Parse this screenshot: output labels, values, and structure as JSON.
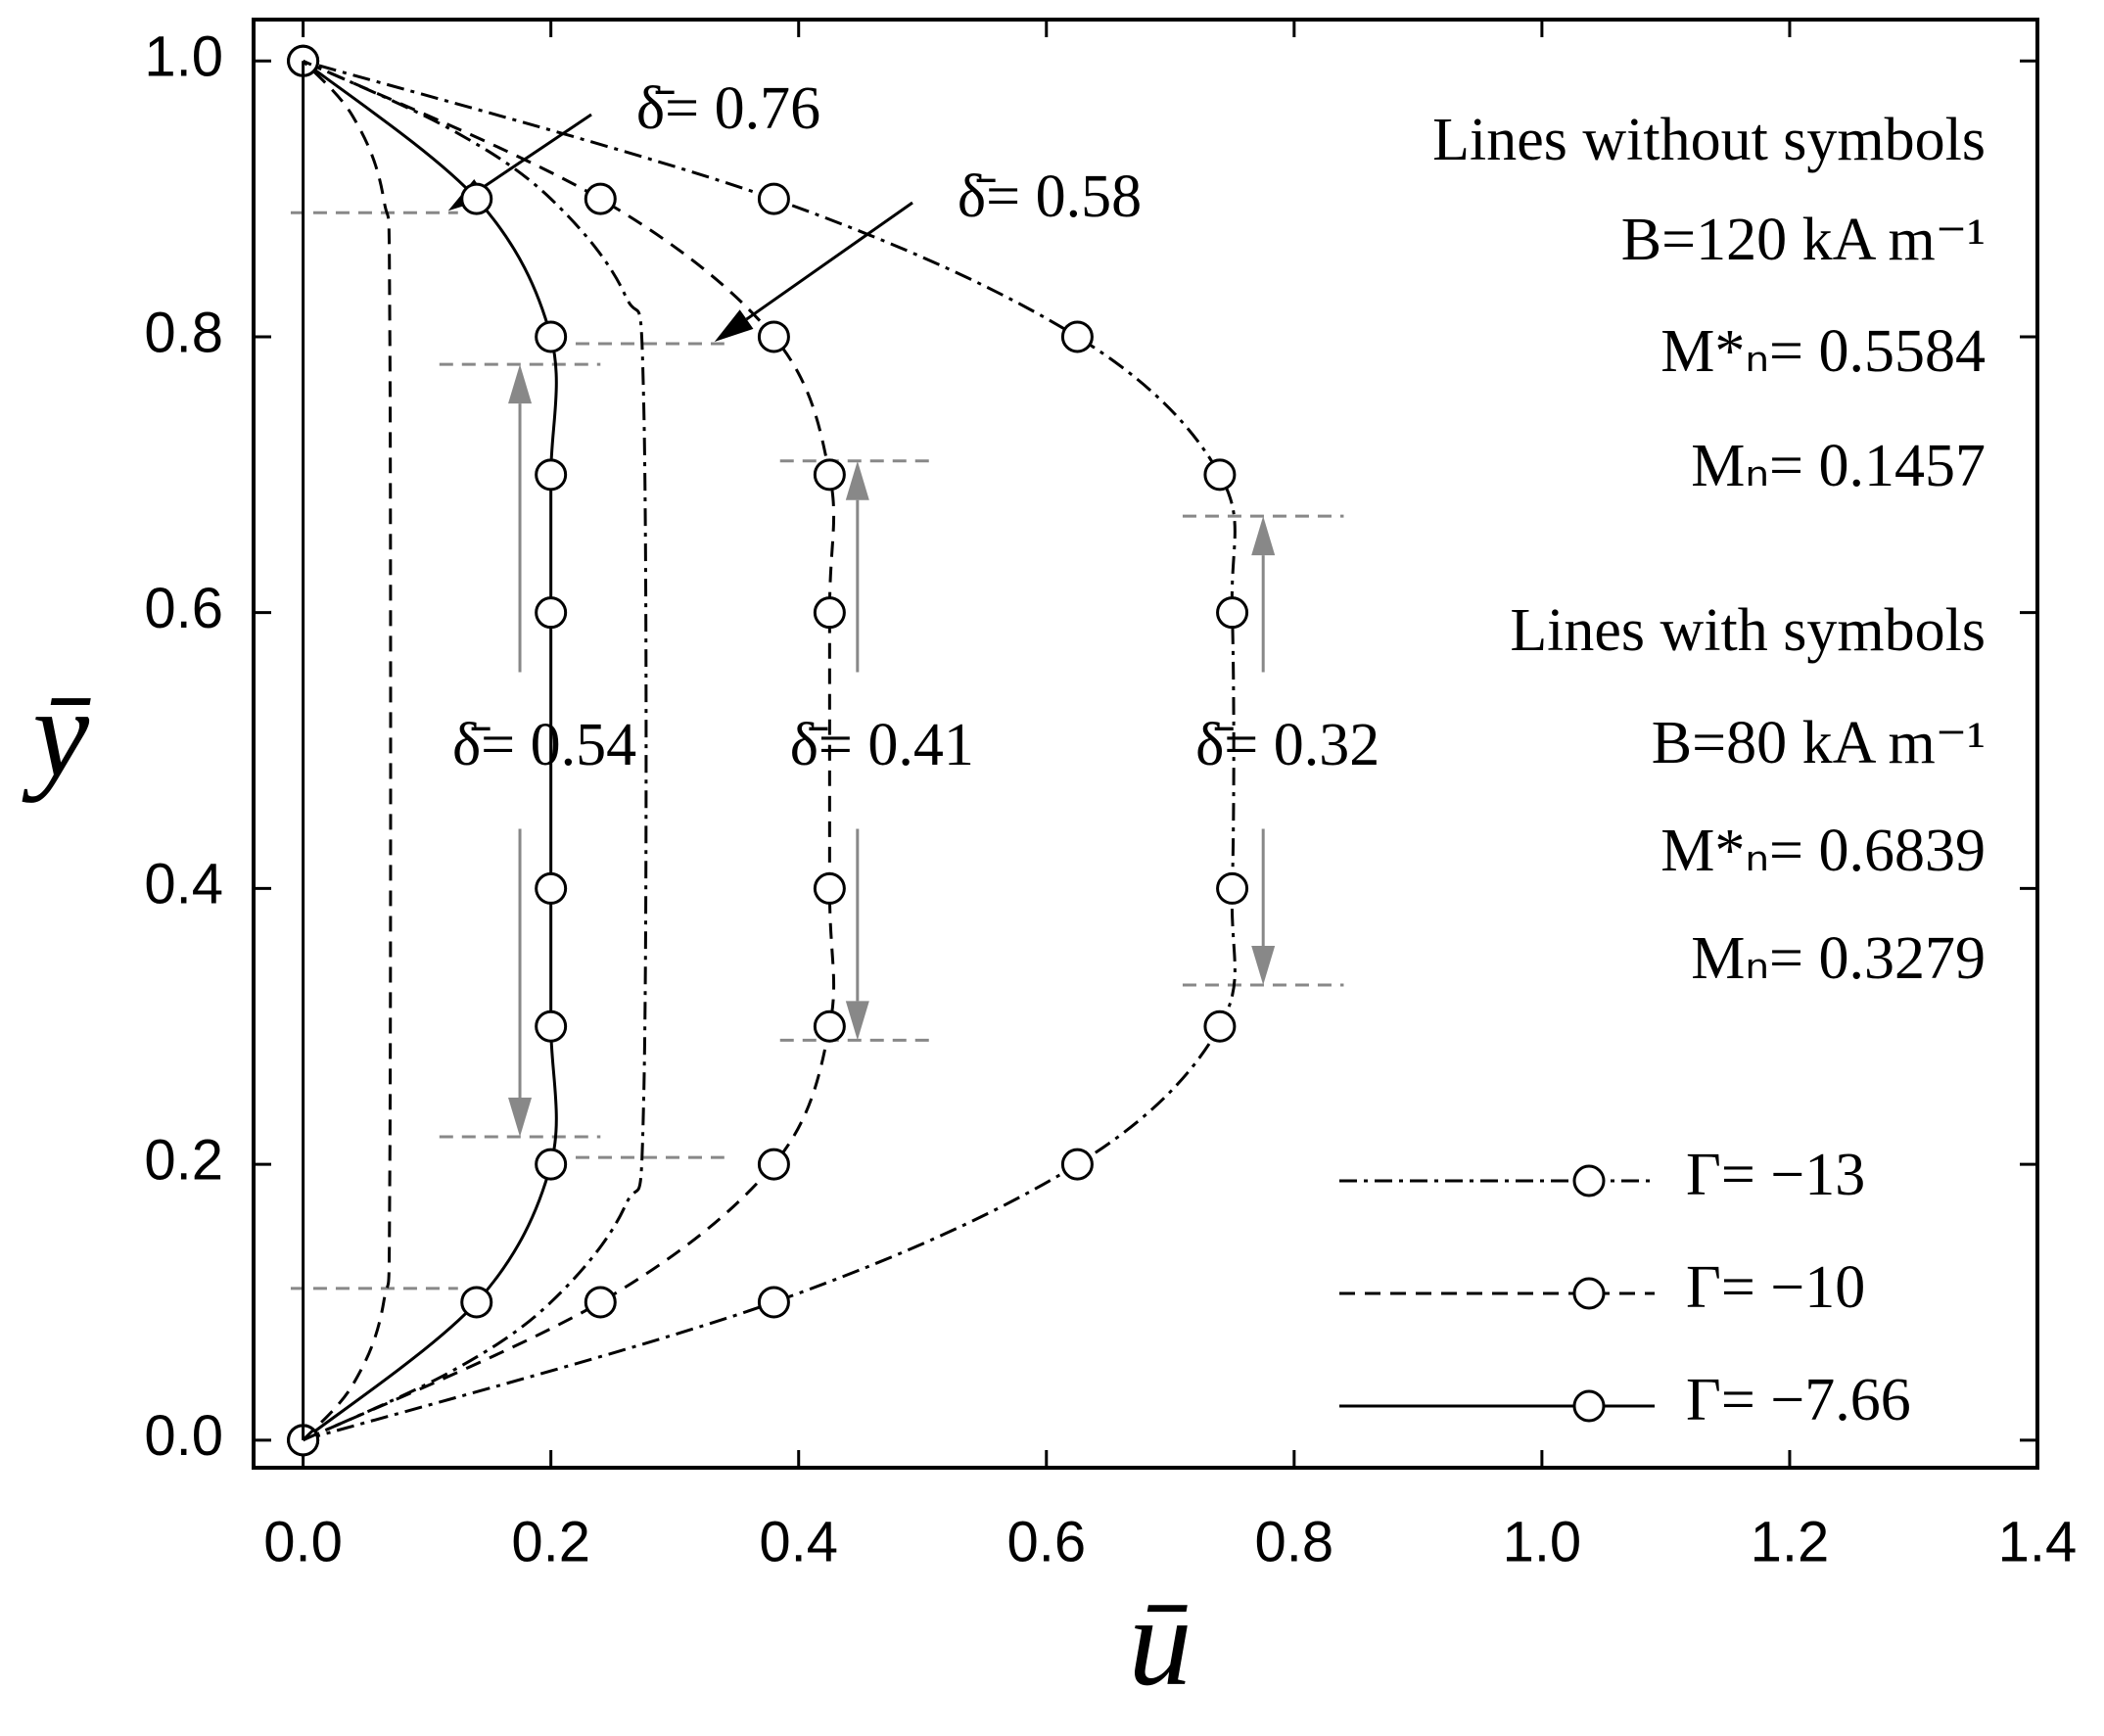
{
  "chart_data": {
    "type": "line",
    "x_label": "ū",
    "y_label": "ȳ",
    "xlim": [
      -0.04,
      1.4
    ],
    "xticks": [
      {
        "value": 0,
        "label": "0.0"
      },
      0.2,
      0.4,
      0.6,
      0.8,
      {
        "value": 1,
        "label": "1.0"
      },
      1.2,
      1.4
    ],
    "ylim": [
      -0.02,
      1.03
    ],
    "yticks": [
      {
        "value": 0,
        "label": "0.0"
      },
      0.2,
      0.4,
      0.6,
      0.8,
      {
        "value": 1,
        "label": "1.0"
      }
    ],
    "series": [
      {
        "name": "Γ= −13",
        "color": "#000000",
        "dash": "dash-dot",
        "markers": true,
        "x": [
          0,
          0.38,
          0.625,
          0.74,
          0.75,
          0.75,
          0.74,
          0.625,
          0.38,
          0
        ],
        "y": [
          0,
          0.1,
          0.2,
          0.3,
          0.4,
          0.6,
          0.7,
          0.8,
          0.9,
          1.0
        ]
      },
      {
        "name": "Γ= −10",
        "color": "#000000",
        "dash": "dashed",
        "markers": true,
        "x": [
          0,
          0.24,
          0.38,
          0.425,
          0.425,
          0.425,
          0.425,
          0.38,
          0.24,
          0
        ],
        "y": [
          0,
          0.1,
          0.2,
          0.3,
          0.4,
          0.6,
          0.7,
          0.8,
          0.9,
          1.0
        ]
      },
      {
        "name": "Γ= −7.66",
        "color": "#000000",
        "dash": "solid",
        "markers": true,
        "x": [
          0,
          0.14,
          0.2,
          0.2,
          0.2,
          0.2,
          0.2,
          0.2,
          0.14,
          0
        ],
        "y": [
          0,
          0.1,
          0.2,
          0.3,
          0.4,
          0.6,
          0.7,
          0.8,
          0.9,
          1.0
        ]
      },
      {
        "color": "#000000",
        "dash": "dash-dot",
        "markers": false,
        "x": [
          0,
          0.12,
          0.2,
          0.26,
          0.275,
          0.275,
          0.26,
          0.2,
          0.12,
          0
        ],
        "y": [
          0,
          0.05,
          0.1,
          0.17,
          0.25,
          0.75,
          0.83,
          0.9,
          0.95,
          1.0
        ]
      },
      {
        "color": "#000000",
        "dash": "dashed",
        "markers": false,
        "x": [
          0,
          0.04,
          0.065,
          0.07,
          0.07,
          0.065,
          0.04,
          0
        ],
        "y": [
          0,
          0.04,
          0.1,
          0.2,
          0.8,
          0.9,
          0.96,
          1.0
        ]
      },
      {
        "color": "#000000",
        "dash": "solid",
        "markers": false,
        "x": [
          0,
          0
        ],
        "y": [
          0,
          1.0
        ]
      }
    ],
    "notes": [
      "Lines without symbols",
      "B=120 kA m⁻¹",
      "M*ₙ= 0.5584",
      "Mₙ= 0.1457",
      "Lines with symbols",
      "B=80 kA m⁻¹",
      "M*ₙ= 0.6839",
      "Mₙ= 0.3279"
    ],
    "delta_guides": [
      {
        "label": "δ̄= 0.76",
        "kind": "pointer",
        "y": [
          0.11,
          0.89
        ],
        "x": [
          -0.01,
          0.125
        ]
      },
      {
        "label": "δ̄= 0.58",
        "kind": "pointer",
        "y": [
          0.205,
          0.795
        ],
        "x": [
          0.22,
          0.34
        ]
      },
      {
        "label": "δ̄= 0.54",
        "kind": "span",
        "y": [
          0.22,
          0.78
        ],
        "x": [
          0.11,
          0.24
        ]
      },
      {
        "label": "δ̄= 0.41",
        "kind": "span",
        "y": [
          0.29,
          0.71
        ],
        "x": [
          0.385,
          0.51
        ]
      },
      {
        "label": "δ̄= 0.32",
        "kind": "span",
        "y": [
          0.33,
          0.67
        ],
        "x": [
          0.71,
          0.84
        ]
      }
    ]
  }
}
